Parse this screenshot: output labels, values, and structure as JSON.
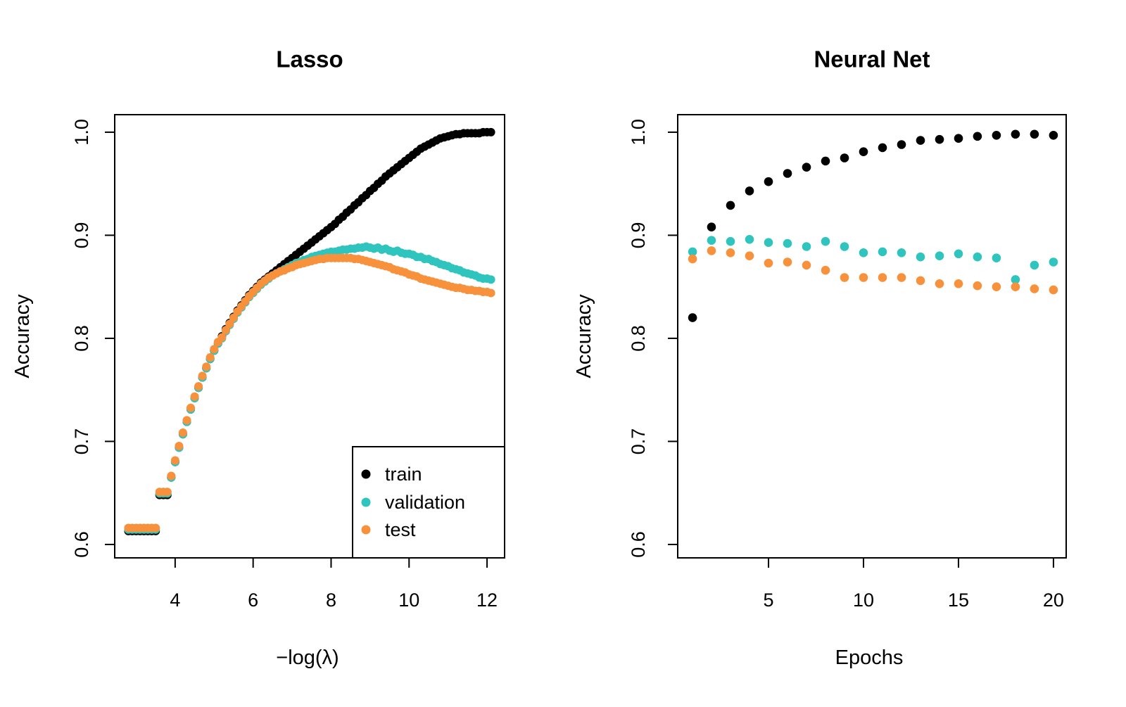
{
  "figure": {
    "background": "#ffffff",
    "frame_color": "#000000"
  },
  "chart_data": [
    {
      "type": "scatter",
      "title": "Lasso",
      "xlabel": "−log(λ)",
      "ylabel": "Accuracy",
      "xlim": [
        2.45,
        12.45
      ],
      "ylim": [
        0.587,
        1.017
      ],
      "x_ticks": [
        4,
        6,
        8,
        10,
        12
      ],
      "x_tick_labels": [
        "4",
        "6",
        "8",
        "10",
        "12"
      ],
      "y_ticks": [
        0.6,
        0.7,
        0.8,
        0.9,
        1.0
      ],
      "y_tick_labels": [
        "0.6",
        "0.7",
        "0.8",
        "0.9",
        "1.0"
      ],
      "grid": false,
      "legend": {
        "position": "bottomright",
        "entries": [
          "train",
          "validation",
          "test"
        ]
      },
      "x": [
        2.8,
        2.9,
        3.0,
        3.1,
        3.2,
        3.3,
        3.4,
        3.5,
        3.6,
        3.7,
        3.8,
        3.9,
        4.0,
        4.1,
        4.2,
        4.3,
        4.4,
        4.5,
        4.6,
        4.7,
        4.8,
        4.9,
        5.0,
        5.1,
        5.2,
        5.3,
        5.4,
        5.5,
        5.6,
        5.7,
        5.8,
        5.9,
        6.0,
        6.1,
        6.2,
        6.3,
        6.4,
        6.5,
        6.6,
        6.7,
        6.8,
        6.9,
        7.0,
        7.1,
        7.2,
        7.3,
        7.4,
        7.5,
        7.6,
        7.7,
        7.8,
        7.9,
        8.0,
        8.1,
        8.2,
        8.3,
        8.4,
        8.5,
        8.6,
        8.7,
        8.8,
        8.9,
        9.0,
        9.1,
        9.2,
        9.3,
        9.4,
        9.5,
        9.6,
        9.7,
        9.8,
        9.9,
        10.0,
        10.1,
        10.2,
        10.3,
        10.4,
        10.5,
        10.6,
        10.7,
        10.8,
        10.9,
        11.0,
        11.1,
        11.2,
        11.3,
        11.4,
        11.5,
        11.6,
        11.7,
        11.8,
        11.9,
        12.0,
        12.1
      ],
      "series": [
        {
          "name": "train",
          "color": "#000000",
          "values": [
            0.613,
            0.613,
            0.613,
            0.613,
            0.613,
            0.613,
            0.613,
            0.613,
            0.648,
            0.648,
            0.648,
            0.665,
            0.68,
            0.694,
            0.707,
            0.719,
            0.731,
            0.742,
            0.752,
            0.762,
            0.771,
            0.78,
            0.788,
            0.795,
            0.802,
            0.809,
            0.815,
            0.821,
            0.827,
            0.832,
            0.837,
            0.842,
            0.846,
            0.85,
            0.854,
            0.857,
            0.86,
            0.863,
            0.866,
            0.869,
            0.872,
            0.875,
            0.878,
            0.881,
            0.884,
            0.887,
            0.89,
            0.893,
            0.896,
            0.899,
            0.902,
            0.905,
            0.908,
            0.911,
            0.915,
            0.918,
            0.922,
            0.925,
            0.929,
            0.932,
            0.936,
            0.939,
            0.943,
            0.946,
            0.95,
            0.953,
            0.957,
            0.96,
            0.963,
            0.966,
            0.969,
            0.972,
            0.975,
            0.978,
            0.981,
            0.984,
            0.986,
            0.988,
            0.99,
            0.992,
            0.994,
            0.995,
            0.996,
            0.997,
            0.998,
            0.998,
            0.999,
            0.999,
            0.999,
            0.999,
            0.999,
            1.0,
            1.0,
            1.0
          ]
        },
        {
          "name": "validation",
          "color": "#2fc5be",
          "values": [
            0.6145,
            0.6145,
            0.6145,
            0.6145,
            0.6145,
            0.6145,
            0.6145,
            0.6145,
            0.6495,
            0.6495,
            0.6495,
            0.665,
            0.68,
            0.694,
            0.707,
            0.719,
            0.731,
            0.742,
            0.752,
            0.762,
            0.771,
            0.78,
            0.788,
            0.795,
            0.8,
            0.807,
            0.813,
            0.819,
            0.825,
            0.83,
            0.835,
            0.84,
            0.844,
            0.848,
            0.852,
            0.855,
            0.858,
            0.861,
            0.863,
            0.865,
            0.867,
            0.869,
            0.871,
            0.873,
            0.874,
            0.876,
            0.877,
            0.879,
            0.88,
            0.881,
            0.882,
            0.883,
            0.884,
            0.884,
            0.885,
            0.886,
            0.886,
            0.887,
            0.887,
            0.888,
            0.888,
            0.889,
            0.888,
            0.887,
            0.888,
            0.886,
            0.887,
            0.885,
            0.884,
            0.885,
            0.883,
            0.882,
            0.882,
            0.881,
            0.879,
            0.879,
            0.877,
            0.877,
            0.875,
            0.874,
            0.872,
            0.871,
            0.87,
            0.868,
            0.867,
            0.866,
            0.864,
            0.863,
            0.862,
            0.861,
            0.859,
            0.858,
            0.858,
            0.857
          ]
        },
        {
          "name": "test",
          "color": "#f8913c",
          "values": [
            0.616,
            0.616,
            0.616,
            0.616,
            0.616,
            0.616,
            0.616,
            0.616,
            0.651,
            0.651,
            0.651,
            0.6665,
            0.6815,
            0.6955,
            0.7085,
            0.7205,
            0.7325,
            0.7435,
            0.7535,
            0.7635,
            0.7725,
            0.7815,
            0.7895,
            0.7965,
            0.801,
            0.808,
            0.814,
            0.82,
            0.826,
            0.831,
            0.836,
            0.841,
            0.845,
            0.849,
            0.853,
            0.856,
            0.859,
            0.861,
            0.863,
            0.865,
            0.866,
            0.868,
            0.869,
            0.871,
            0.872,
            0.873,
            0.874,
            0.875,
            0.876,
            0.877,
            0.877,
            0.878,
            0.878,
            0.878,
            0.878,
            0.878,
            0.878,
            0.878,
            0.877,
            0.877,
            0.876,
            0.875,
            0.874,
            0.873,
            0.872,
            0.871,
            0.87,
            0.869,
            0.867,
            0.866,
            0.865,
            0.864,
            0.862,
            0.861,
            0.86,
            0.858,
            0.857,
            0.856,
            0.855,
            0.854,
            0.853,
            0.852,
            0.851,
            0.85,
            0.849,
            0.849,
            0.848,
            0.847,
            0.847,
            0.846,
            0.846,
            0.845,
            0.845,
            0.844
          ]
        }
      ]
    },
    {
      "type": "scatter",
      "title": "Neural Net",
      "xlabel": "Epochs",
      "ylabel": "Accuracy",
      "xlim": [
        0.22,
        20.67
      ],
      "ylim": [
        0.587,
        1.017
      ],
      "x_ticks": [
        5,
        10,
        15,
        20
      ],
      "x_tick_labels": [
        "5",
        "10",
        "15",
        "20"
      ],
      "y_ticks": [
        0.6,
        0.7,
        0.8,
        0.9,
        1.0
      ],
      "y_tick_labels": [
        "0.6",
        "0.7",
        "0.8",
        "0.9",
        "1.0"
      ],
      "grid": false,
      "x": [
        1,
        2,
        3,
        4,
        5,
        6,
        7,
        8,
        9,
        10,
        11,
        12,
        13,
        14,
        15,
        16,
        17,
        18,
        19,
        20
      ],
      "series": [
        {
          "name": "train",
          "color": "#000000",
          "values": [
            0.82,
            0.908,
            0.929,
            0.943,
            0.952,
            0.96,
            0.966,
            0.972,
            0.975,
            0.981,
            0.985,
            0.988,
            0.992,
            0.993,
            0.994,
            0.996,
            0.997,
            0.998,
            0.998,
            0.997
          ]
        },
        {
          "name": "validation",
          "color": "#2fc5be",
          "values": [
            0.884,
            0.895,
            0.894,
            0.896,
            0.893,
            0.892,
            0.889,
            0.894,
            0.889,
            0.883,
            0.884,
            0.883,
            0.879,
            0.88,
            0.882,
            0.879,
            0.878,
            0.857,
            0.871,
            0.874
          ]
        },
        {
          "name": "test",
          "color": "#f8913c",
          "values": [
            0.877,
            0.885,
            0.883,
            0.88,
            0.873,
            0.874,
            0.871,
            0.866,
            0.859,
            0.859,
            0.859,
            0.859,
            0.856,
            0.853,
            0.853,
            0.851,
            0.85,
            0.85,
            0.848,
            0.847
          ]
        }
      ]
    }
  ]
}
